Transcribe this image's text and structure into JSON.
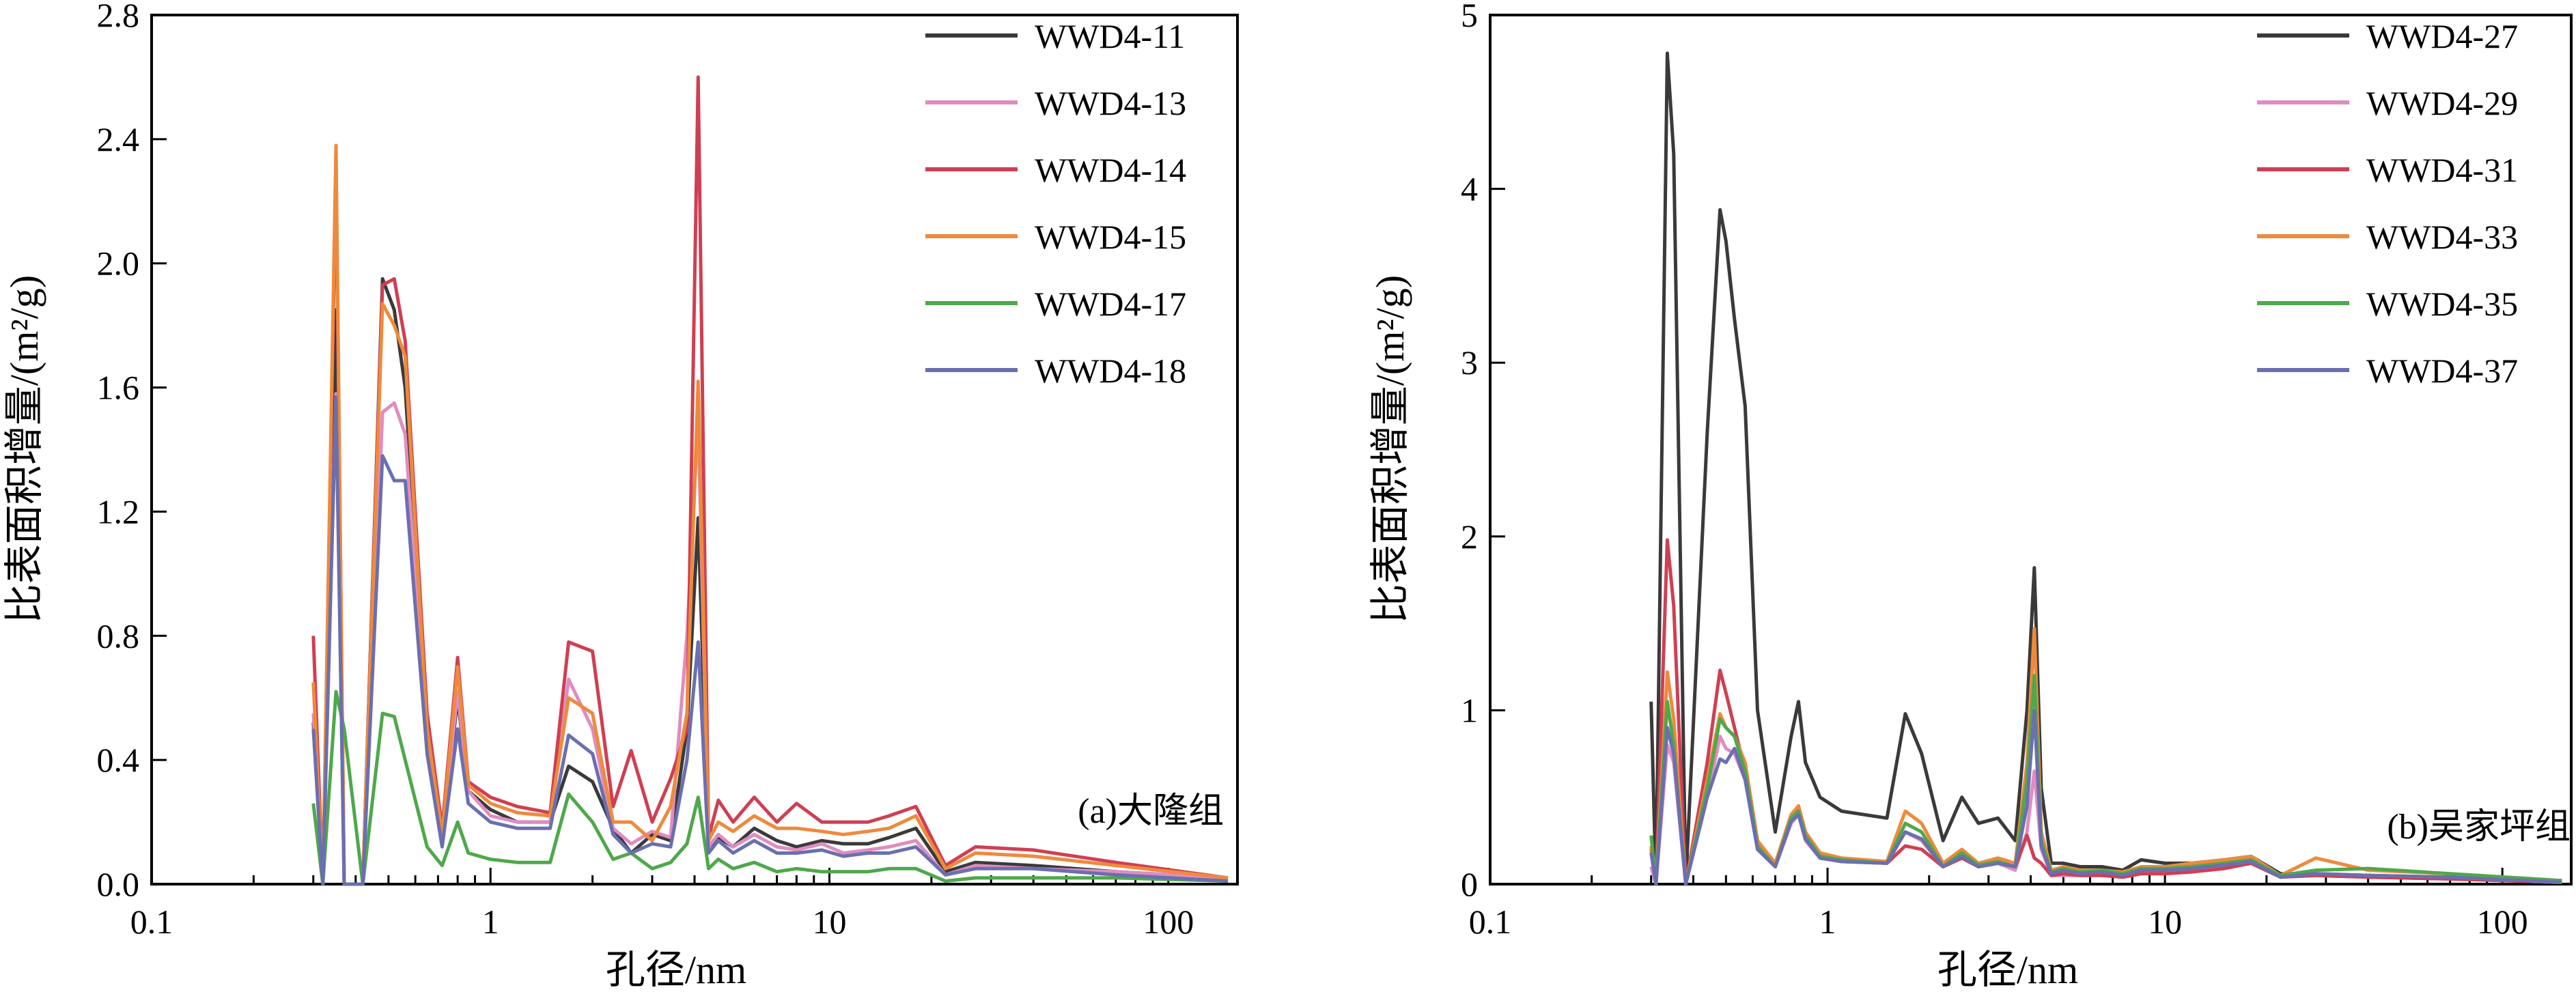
{
  "colors": {
    "axis": "#000000",
    "series": [
      "#3a3a3a",
      "#e08cc0",
      "#cf3f52",
      "#ee8a3c",
      "#4fa84a",
      "#6a6fb0"
    ]
  },
  "chart_data": [
    {
      "type": "line",
      "title": "(a)大隆组",
      "xlabel": "孔径/nm",
      "ylabel": "比表面积增量/(m²/g)",
      "x_scale": "log",
      "xlim": [
        0.1,
        160
      ],
      "ylim": [
        0,
        2.8
      ],
      "x_ticks": [
        {
          "v": 0.1,
          "label": "0.1"
        },
        {
          "v": 1,
          "label": "1"
        },
        {
          "v": 10,
          "label": "10"
        },
        {
          "v": 100,
          "label": "100"
        }
      ],
      "y_ticks": [
        {
          "v": 0,
          "label": "0.0"
        },
        {
          "v": 0.4,
          "label": "0.4"
        },
        {
          "v": 0.8,
          "label": "0.8"
        },
        {
          "v": 1.2,
          "label": "1.2"
        },
        {
          "v": 1.6,
          "label": "1.6"
        },
        {
          "v": 2.0,
          "label": "2.0"
        },
        {
          "v": 2.4,
          "label": "2.4"
        },
        {
          "v": 2.8,
          "label": "2.8"
        }
      ],
      "x": [
        0.3,
        0.32,
        0.35,
        0.37,
        0.42,
        0.48,
        0.52,
        0.56,
        0.65,
        0.72,
        0.8,
        0.86,
        1.0,
        1.2,
        1.5,
        1.7,
        2.0,
        2.3,
        2.6,
        3.0,
        3.4,
        3.8,
        4.1,
        4.4,
        4.7,
        5.2,
        6.0,
        7.0,
        8.0,
        9.5,
        11,
        13,
        15,
        18,
        22,
        27,
        40,
        70,
        150
      ],
      "series": [
        {
          "name": "WWD4-11",
          "values": [
            0.52,
            0,
            1.85,
            0.0,
            0.0,
            1.95,
            1.85,
            1.6,
            0.48,
            0.14,
            0.6,
            0.3,
            0.24,
            0.2,
            0.2,
            0.38,
            0.33,
            0.18,
            0.1,
            0.16,
            0.14,
            0.5,
            1.18,
            0.12,
            0.15,
            0.12,
            0.18,
            0.14,
            0.12,
            0.14,
            0.13,
            0.13,
            0.15,
            0.18,
            0.04,
            0.07,
            0.06,
            0.04,
            0.02
          ]
        },
        {
          "name": "WWD4-13",
          "values": [
            0.55,
            0,
            1.58,
            0.0,
            0.0,
            1.52,
            1.55,
            1.45,
            0.45,
            0.15,
            0.62,
            0.3,
            0.22,
            0.2,
            0.2,
            0.66,
            0.5,
            0.18,
            0.13,
            0.17,
            0.15,
            0.8,
            1.5,
            0.12,
            0.16,
            0.12,
            0.16,
            0.12,
            0.11,
            0.13,
            0.1,
            0.11,
            0.12,
            0.14,
            0.03,
            0.06,
            0.05,
            0.04,
            0.02
          ]
        },
        {
          "name": "WWD4-14",
          "values": [
            0.8,
            0,
            2.3,
            0.0,
            0.0,
            1.93,
            1.95,
            1.75,
            0.55,
            0.18,
            0.73,
            0.33,
            0.28,
            0.25,
            0.23,
            0.78,
            0.75,
            0.25,
            0.43,
            0.2,
            0.34,
            0.5,
            2.6,
            0.15,
            0.27,
            0.2,
            0.28,
            0.2,
            0.26,
            0.2,
            0.2,
            0.2,
            0.22,
            0.25,
            0.06,
            0.12,
            0.11,
            0.07,
            0.02
          ]
        },
        {
          "name": "WWD4-15",
          "values": [
            0.65,
            0,
            2.38,
            0.0,
            0.0,
            1.87,
            1.8,
            1.7,
            0.5,
            0.16,
            0.7,
            0.32,
            0.26,
            0.23,
            0.22,
            0.6,
            0.55,
            0.2,
            0.2,
            0.14,
            0.25,
            0.55,
            1.62,
            0.14,
            0.2,
            0.17,
            0.22,
            0.18,
            0.18,
            0.17,
            0.16,
            0.17,
            0.18,
            0.22,
            0.05,
            0.1,
            0.09,
            0.06,
            0.02
          ]
        },
        {
          "name": "WWD4-17",
          "values": [
            0.26,
            0,
            0.62,
            0.5,
            0.0,
            0.55,
            0.54,
            0.4,
            0.12,
            0.06,
            0.2,
            0.1,
            0.08,
            0.07,
            0.07,
            0.29,
            0.2,
            0.08,
            0.1,
            0.05,
            0.07,
            0.13,
            0.28,
            0.05,
            0.08,
            0.05,
            0.07,
            0.04,
            0.05,
            0.04,
            0.04,
            0.04,
            0.05,
            0.05,
            0.01,
            0.02,
            0.02,
            0.02,
            0.01
          ]
        },
        {
          "name": "WWD4-18",
          "values": [
            0.5,
            0,
            1.57,
            0.0,
            0.0,
            1.38,
            1.3,
            1.3,
            0.42,
            0.12,
            0.5,
            0.26,
            0.2,
            0.18,
            0.18,
            0.48,
            0.42,
            0.16,
            0.1,
            0.13,
            0.12,
            0.4,
            0.78,
            0.1,
            0.14,
            0.1,
            0.14,
            0.1,
            0.1,
            0.11,
            0.09,
            0.1,
            0.1,
            0.12,
            0.03,
            0.05,
            0.05,
            0.03,
            0.01
          ]
        }
      ]
    },
    {
      "type": "line",
      "title": "(b)吴家坪组",
      "xlabel": "孔径/nm",
      "ylabel": "比表面积增量/(m²/g)",
      "x_scale": "log",
      "xlim": [
        0.1,
        160
      ],
      "ylim": [
        0,
        5
      ],
      "x_ticks": [
        {
          "v": 0.1,
          "label": "0.1"
        },
        {
          "v": 1,
          "label": "1"
        },
        {
          "v": 10,
          "label": "10"
        },
        {
          "v": 100,
          "label": "100"
        }
      ],
      "y_ticks": [
        {
          "v": 0,
          "label": "0"
        },
        {
          "v": 1,
          "label": "1"
        },
        {
          "v": 2,
          "label": "2"
        },
        {
          "v": 3,
          "label": "3"
        },
        {
          "v": 4,
          "label": "4"
        },
        {
          "v": 5,
          "label": "5"
        }
      ],
      "x": [
        0.3,
        0.31,
        0.335,
        0.35,
        0.38,
        0.44,
        0.48,
        0.5,
        0.53,
        0.57,
        0.62,
        0.7,
        0.78,
        0.82,
        0.86,
        0.95,
        1.1,
        1.5,
        1.7,
        1.9,
        2.2,
        2.5,
        2.8,
        3.2,
        3.6,
        3.9,
        4.1,
        4.3,
        4.6,
        5.0,
        5.6,
        6.5,
        7.5,
        8.5,
        10,
        12,
        15,
        18,
        22,
        28,
        40,
        70,
        150
      ],
      "series": [
        {
          "name": "WWD4-27",
          "values": [
            1.05,
            0,
            4.78,
            4.2,
            0,
            2.6,
            3.88,
            3.7,
            3.25,
            2.75,
            1.0,
            0.3,
            0.85,
            1.05,
            0.7,
            0.5,
            0.42,
            0.38,
            0.98,
            0.75,
            0.25,
            0.5,
            0.35,
            0.38,
            0.25,
            1.0,
            1.82,
            0.55,
            0.12,
            0.12,
            0.1,
            0.1,
            0.08,
            0.14,
            0.12,
            0.12,
            0.14,
            0.16,
            0.06,
            0.06,
            0.05,
            0.04,
            0.02
          ]
        },
        {
          "name": "WWD4-29",
          "values": [
            0.1,
            0,
            0.8,
            0.7,
            0,
            0.5,
            0.85,
            0.78,
            0.75,
            0.6,
            0.2,
            0.1,
            0.35,
            0.4,
            0.25,
            0.15,
            0.13,
            0.12,
            0.3,
            0.25,
            0.1,
            0.15,
            0.1,
            0.12,
            0.08,
            0.3,
            0.65,
            0.2,
            0.05,
            0.05,
            0.05,
            0.05,
            0.04,
            0.06,
            0.07,
            0.08,
            0.1,
            0.12,
            0.04,
            0.05,
            0.04,
            0.03,
            0.01
          ]
        },
        {
          "name": "WWD4-31",
          "values": [
            0.2,
            0,
            1.98,
            1.6,
            0,
            0.7,
            1.23,
            1.1,
            0.9,
            0.65,
            0.25,
            0.1,
            0.38,
            0.45,
            0.3,
            0.15,
            0.13,
            0.12,
            0.22,
            0.2,
            0.1,
            0.15,
            0.1,
            0.12,
            0.1,
            0.28,
            0.15,
            0.12,
            0.05,
            0.06,
            0.05,
            0.05,
            0.04,
            0.06,
            0.06,
            0.07,
            0.09,
            0.12,
            0.04,
            0.05,
            0.04,
            0.03,
            0.01
          ]
        },
        {
          "name": "WWD4-33",
          "values": [
            0.22,
            0,
            1.22,
            0.95,
            0,
            0.6,
            0.98,
            0.9,
            0.85,
            0.7,
            0.25,
            0.12,
            0.4,
            0.45,
            0.3,
            0.18,
            0.15,
            0.13,
            0.42,
            0.35,
            0.12,
            0.2,
            0.12,
            0.15,
            0.12,
            0.7,
            1.47,
            0.3,
            0.08,
            0.1,
            0.08,
            0.08,
            0.07,
            0.1,
            0.1,
            0.12,
            0.14,
            0.16,
            0.05,
            0.15,
            0.08,
            0.06,
            0.02
          ]
        },
        {
          "name": "WWD4-35",
          "values": [
            0.28,
            0,
            1.05,
            0.8,
            0,
            0.55,
            0.95,
            0.9,
            0.85,
            0.65,
            0.22,
            0.1,
            0.38,
            0.42,
            0.28,
            0.16,
            0.14,
            0.12,
            0.35,
            0.3,
            0.1,
            0.18,
            0.11,
            0.13,
            0.1,
            0.6,
            1.2,
            0.25,
            0.07,
            0.09,
            0.07,
            0.08,
            0.06,
            0.09,
            0.09,
            0.1,
            0.12,
            0.14,
            0.05,
            0.08,
            0.09,
            0.06,
            0.02
          ]
        },
        {
          "name": "WWD4-37",
          "values": [
            0.18,
            0,
            0.9,
            0.75,
            0,
            0.5,
            0.72,
            0.7,
            0.78,
            0.6,
            0.2,
            0.1,
            0.36,
            0.4,
            0.26,
            0.15,
            0.13,
            0.12,
            0.3,
            0.26,
            0.1,
            0.16,
            0.1,
            0.12,
            0.1,
            0.45,
            1.0,
            0.22,
            0.06,
            0.08,
            0.06,
            0.07,
            0.05,
            0.08,
            0.08,
            0.09,
            0.11,
            0.13,
            0.04,
            0.06,
            0.05,
            0.04,
            0.01
          ]
        }
      ]
    }
  ]
}
